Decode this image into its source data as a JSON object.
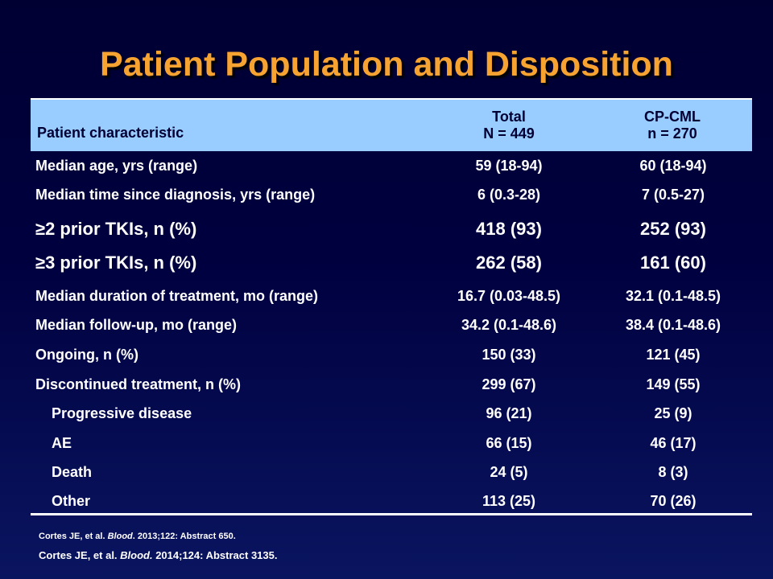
{
  "title": "Patient Population and Disposition",
  "table": {
    "header": {
      "characteristic": "Patient characteristic",
      "col1_line1": "Total",
      "col1_line2": "N = 449",
      "col2_line1": "CP-CML",
      "col2_line2": "n = 270"
    },
    "rows": [
      {
        "label": "Median age, yrs (range)",
        "total": "59 (18-94)",
        "cpcml": "60 (18-94)"
      },
      {
        "label": "Median time since diagnosis, yrs (range)",
        "total": "6 (0.3-28)",
        "cpcml": "7 (0.5-27)"
      },
      {
        "label": "≥2 prior TKIs, n (%)",
        "total": "418 (93)",
        "cpcml": "252 (93)"
      },
      {
        "label": "≥3 prior TKIs, n (%)",
        "total": "262 (58)",
        "cpcml": "161 (60)"
      },
      {
        "label": "Median duration of treatment, mo (range)",
        "total": "16.7 (0.03-48.5)",
        "cpcml": "32.1 (0.1-48.5)"
      },
      {
        "label": "Median follow-up, mo (range)",
        "total": "34.2 (0.1-48.6)",
        "cpcml": "38.4 (0.1-48.6)"
      },
      {
        "label": "Ongoing, n (%)",
        "total": "150 (33)",
        "cpcml": "121 (45)"
      },
      {
        "label": "Discontinued treatment, n (%)",
        "total": "299 (67)",
        "cpcml": "149 (55)"
      },
      {
        "label": "Progressive disease",
        "total": "96 (21)",
        "cpcml": "25 (9)"
      },
      {
        "label": "AE",
        "total": "66 (15)",
        "cpcml": "46 (17)"
      },
      {
        "label": "Death",
        "total": "24 (5)",
        "cpcml": "8 (3)"
      },
      {
        "label": "Other",
        "total": "113 (25)",
        "cpcml": "70 (26)"
      }
    ]
  },
  "references": {
    "ref1_authors": "Cortes JE, et al. ",
    "ref1_journal": "Blood",
    "ref1_rest": ". 2013;122:  Abstract  650.",
    "ref2_authors": "Cortes JE, et al. ",
    "ref2_journal": "Blood.",
    "ref2_rest": " 2014;124: Abstract 3135."
  },
  "colors": {
    "title": "#f7a332",
    "header_bg": "#99ccff",
    "background_top": "#000033",
    "background_bottom": "#0a1560",
    "text": "#ffffff"
  }
}
